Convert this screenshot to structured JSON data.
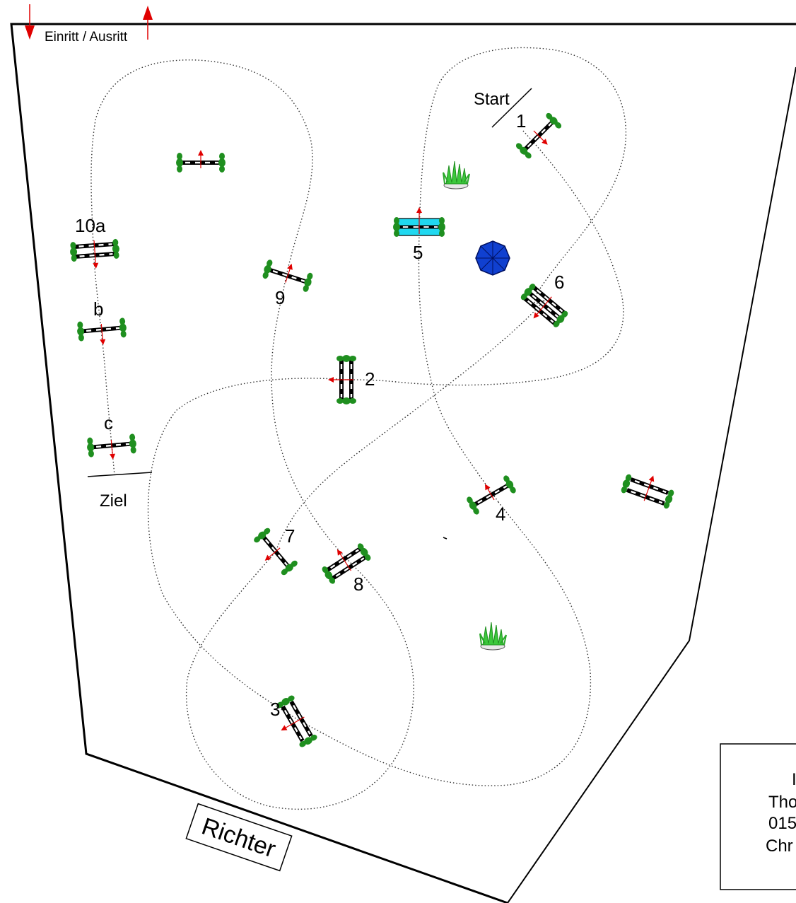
{
  "entrance_label": "Einritt / Ausritt",
  "start_label": "Start",
  "finish_label": "Ziel",
  "judge_label": "Richter",
  "obstacle_numbers": {
    "n1": "1",
    "n2": "2",
    "n3": "3",
    "n4": "4",
    "n5": "5",
    "n6": "6",
    "n7": "7",
    "n8": "8",
    "n9": "9",
    "n10a": "10a",
    "n10b": "b",
    "n10c": "c"
  },
  "info_box": {
    "line1": "I",
    "line2": "Tho",
    "line3": "015",
    "line4": "Chr"
  },
  "colors": {
    "standard": "#1f8f1f",
    "arrow": "#e00000",
    "water": "#20d8f0",
    "umbrella": "#1040d0",
    "plant": "#3cc83c"
  },
  "icons": [
    "bush-standard-icon",
    "direction-arrow-icon",
    "umbrella-icon",
    "plant-pot-icon"
  ]
}
